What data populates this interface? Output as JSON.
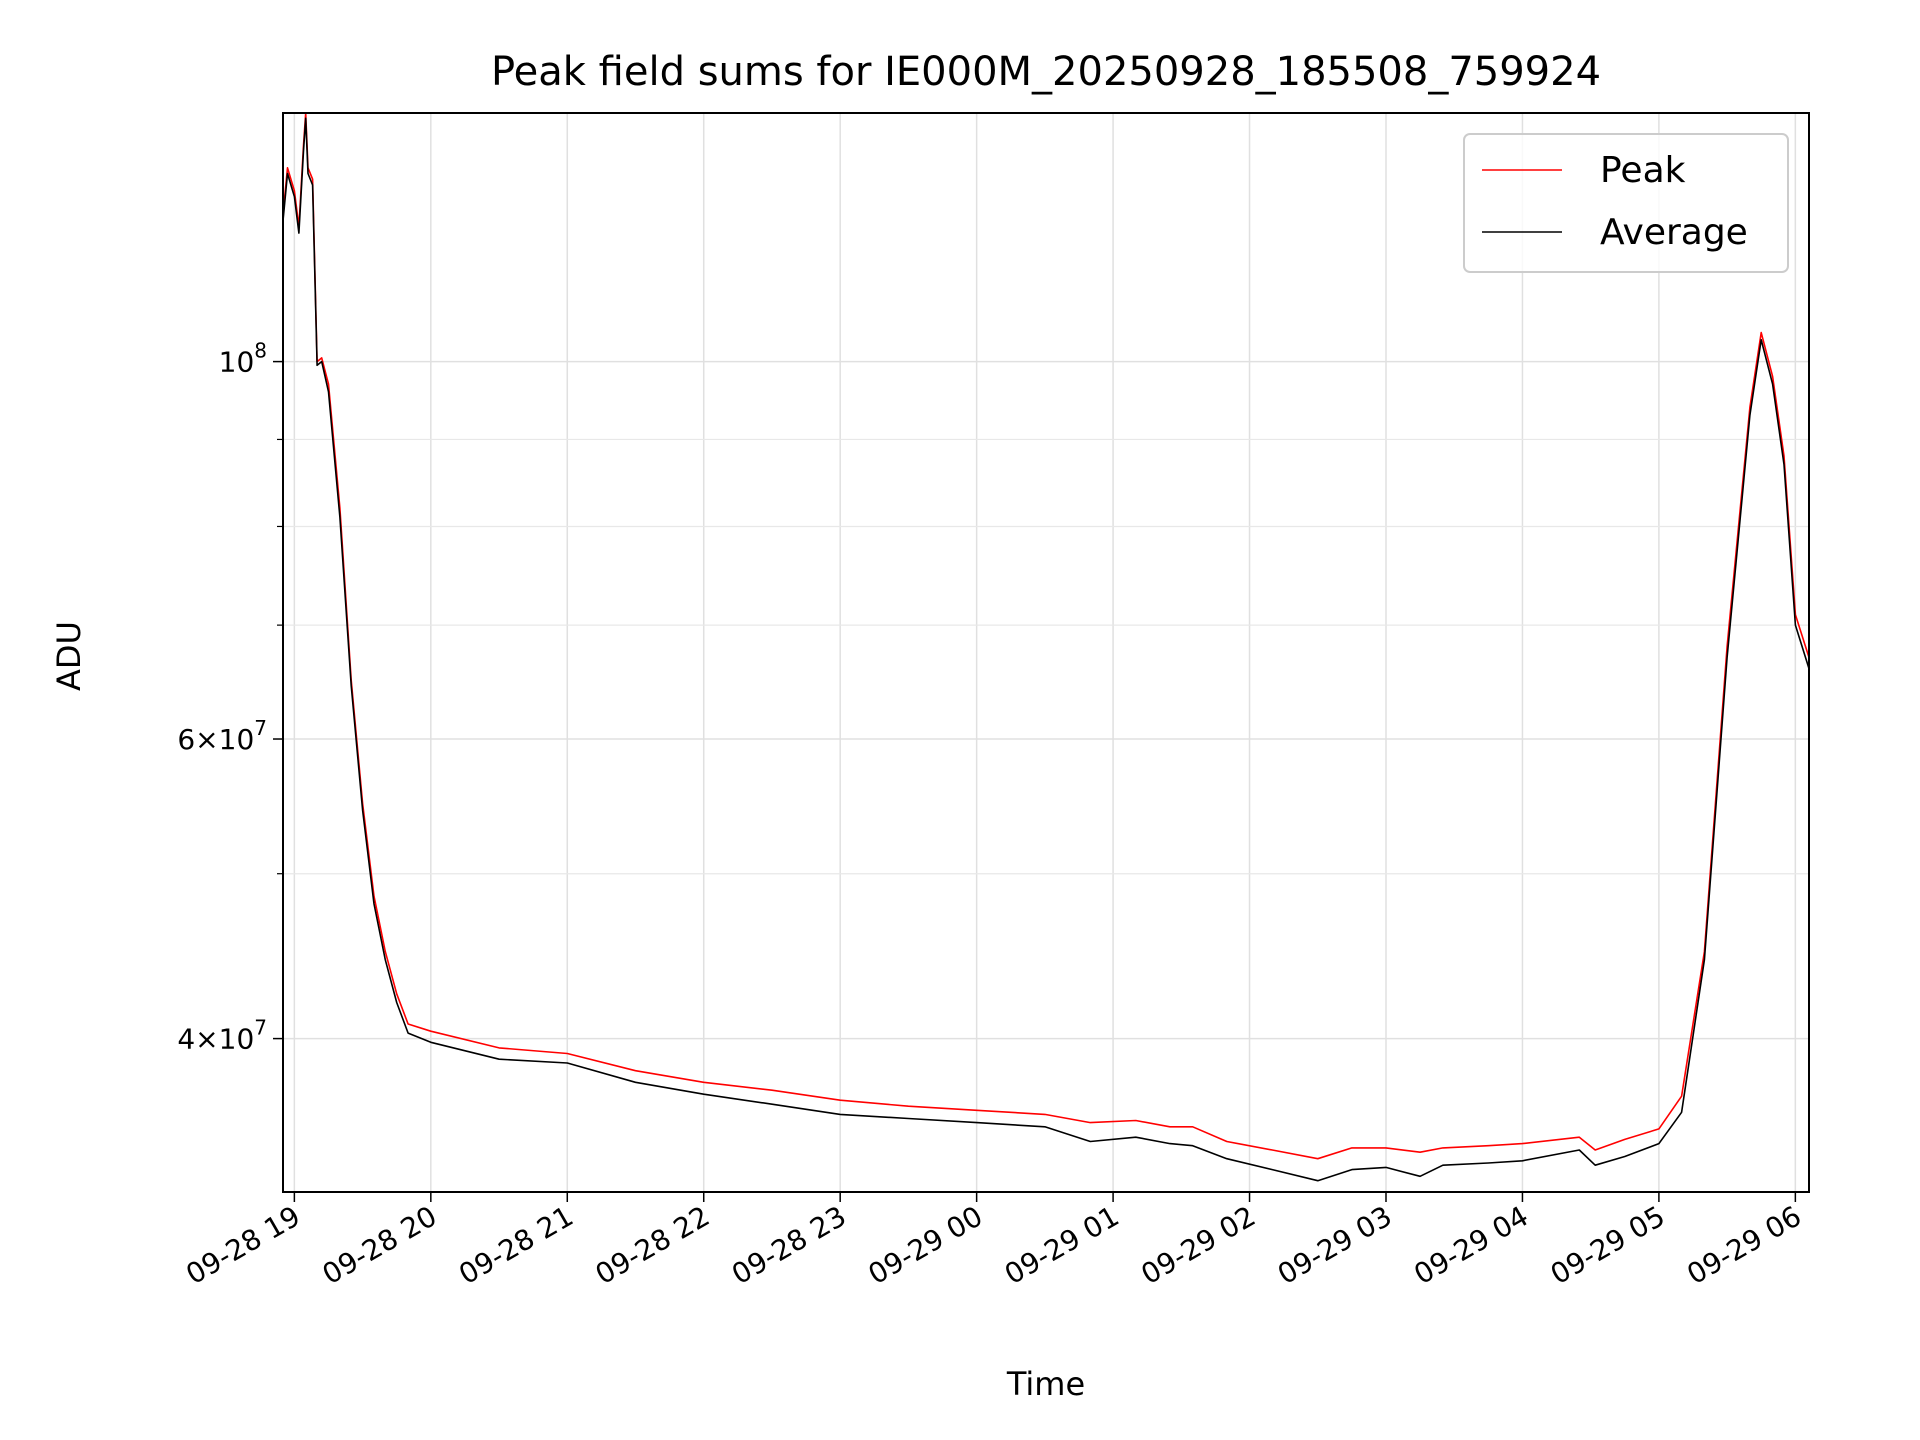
{
  "chart_data": {
    "type": "line",
    "title": "Peak field sums for IE000M_20250928_185508_759924",
    "xlabel": "Time",
    "ylabel": "ADU",
    "y_scale": "log",
    "xlim": [
      "2025-09-28 18:55",
      "2025-09-29 06:06"
    ],
    "ylim": [
      32500000,
      140000000
    ],
    "grid": true,
    "legend_position": "top-right",
    "x_tick_labels": [
      "09-28 19",
      "09-28 20",
      "09-28 21",
      "09-28 22",
      "09-28 23",
      "09-29 00",
      "09-29 01",
      "09-29 02",
      "09-29 03",
      "09-29 04",
      "09-29 05",
      "09-29 06"
    ],
    "x_tick_times": [
      "2025-09-28 19:00",
      "2025-09-28 20:00",
      "2025-09-28 21:00",
      "2025-09-28 22:00",
      "2025-09-28 23:00",
      "2025-09-29 00:00",
      "2025-09-29 01:00",
      "2025-09-29 02:00",
      "2025-09-29 03:00",
      "2025-09-29 04:00",
      "2025-09-29 05:00",
      "2025-09-29 06:00"
    ],
    "y_ticks": [
      {
        "value": 40000000,
        "mantissa": "4",
        "exponent": "7"
      },
      {
        "value": 60000000,
        "mantissa": "6",
        "exponent": "7"
      },
      {
        "value": 100000000,
        "mantissa": "",
        "exponent": "8"
      }
    ],
    "y_minor_ticks": [
      50000000,
      70000000,
      80000000,
      90000000
    ],
    "x": [
      "2025-09-28 18:55",
      "2025-09-28 18:57",
      "2025-09-28 19:00",
      "2025-09-28 19:02",
      "2025-09-28 19:04",
      "2025-09-28 19:05",
      "2025-09-28 19:06",
      "2025-09-28 19:08",
      "2025-09-28 19:10",
      "2025-09-28 19:12",
      "2025-09-28 19:15",
      "2025-09-28 19:20",
      "2025-09-28 19:25",
      "2025-09-28 19:30",
      "2025-09-28 19:35",
      "2025-09-28 19:40",
      "2025-09-28 19:45",
      "2025-09-28 19:50",
      "2025-09-28 20:00",
      "2025-09-28 20:30",
      "2025-09-28 21:00",
      "2025-09-28 21:30",
      "2025-09-28 22:00",
      "2025-09-28 22:30",
      "2025-09-28 23:00",
      "2025-09-28 23:30",
      "2025-09-29 00:00",
      "2025-09-29 00:30",
      "2025-09-29 00:50",
      "2025-09-29 01:10",
      "2025-09-29 01:25",
      "2025-09-29 01:35",
      "2025-09-29 01:50",
      "2025-09-29 02:10",
      "2025-09-29 02:30",
      "2025-09-29 02:45",
      "2025-09-29 03:00",
      "2025-09-29 03:15",
      "2025-09-29 03:25",
      "2025-09-29 03:45",
      "2025-09-29 04:00",
      "2025-09-29 04:25",
      "2025-09-29 04:32",
      "2025-09-29 04:45",
      "2025-09-29 05:00",
      "2025-09-29 05:10",
      "2025-09-29 05:20",
      "2025-09-29 05:30",
      "2025-09-29 05:40",
      "2025-09-29 05:45",
      "2025-09-29 05:50",
      "2025-09-29 05:55",
      "2025-09-29 06:00",
      "2025-09-29 06:06"
    ],
    "series": [
      {
        "name": "Peak",
        "color": "#ff0000",
        "values": [
          122000000,
          130000000,
          126000000,
          120000000,
          134000000,
          140000000,
          130000000,
          128000000,
          100000000,
          100500000,
          97000000,
          82000000,
          65000000,
          55000000,
          48500000,
          45000000,
          42500000,
          40800000,
          40400000,
          39500000,
          39200000,
          38300000,
          37700000,
          37300000,
          36800000,
          36500000,
          36300000,
          36100000,
          35700000,
          35800000,
          35500000,
          35500000,
          34800000,
          34400000,
          34000000,
          34500000,
          34500000,
          34300000,
          34500000,
          34600000,
          34700000,
          35000000,
          34400000,
          34900000,
          35400000,
          37000000,
          45000000,
          68000000,
          94000000,
          104000000,
          98000000,
          88000000,
          71000000,
          67000000
        ]
      },
      {
        "name": "Average",
        "color": "#000000",
        "values": [
          121000000,
          129000000,
          125000000,
          119000000,
          133000000,
          139000000,
          129000000,
          127000000,
          99500000,
          100000000,
          96000000,
          81000000,
          64500000,
          54500000,
          48000000,
          44500000,
          42000000,
          40300000,
          39800000,
          38900000,
          38700000,
          37700000,
          37100000,
          36600000,
          36100000,
          35900000,
          35700000,
          35500000,
          34800000,
          35000000,
          34700000,
          34600000,
          34000000,
          33500000,
          33000000,
          33500000,
          33600000,
          33200000,
          33700000,
          33800000,
          33900000,
          34400000,
          33700000,
          34100000,
          34700000,
          36200000,
          44500000,
          67000000,
          93000000,
          103000000,
          97000000,
          87000000,
          70000000,
          66000000
        ]
      }
    ]
  }
}
